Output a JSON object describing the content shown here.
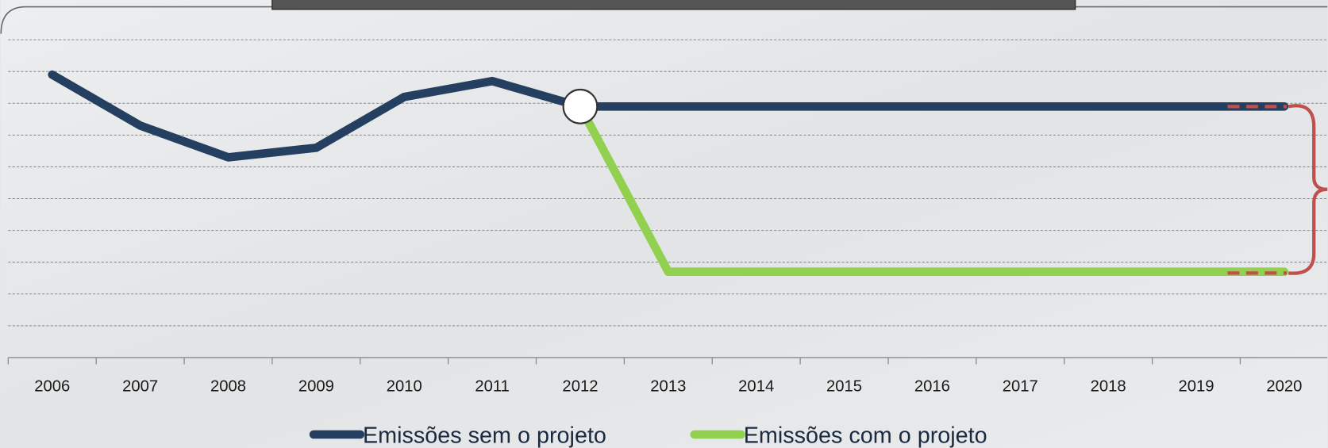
{
  "chart_data": {
    "type": "line",
    "categories": [
      "2006",
      "2007",
      "2008",
      "2009",
      "2010",
      "2011",
      "2012",
      "2013",
      "2014",
      "2015",
      "2016",
      "2017",
      "2018",
      "2019",
      "2020"
    ],
    "series": [
      {
        "name": "Emissões sem o projeto",
        "color": "#243f60",
        "values": [
          8.9,
          7.3,
          6.3,
          6.6,
          8.2,
          8.7,
          7.9,
          7.9,
          7.9,
          7.9,
          7.9,
          7.9,
          7.9,
          7.9,
          7.9
        ]
      },
      {
        "name": "Emissões com o projeto",
        "color": "#92d050",
        "values": [
          null,
          null,
          null,
          null,
          null,
          null,
          7.9,
          2.7,
          2.7,
          2.7,
          2.7,
          2.7,
          2.7,
          2.7,
          2.7
        ]
      }
    ],
    "ylim": [
      0,
      10
    ],
    "yticks": [
      1,
      2,
      3,
      4,
      5,
      6,
      7,
      8,
      9,
      10
    ],
    "grid": true
  }
}
